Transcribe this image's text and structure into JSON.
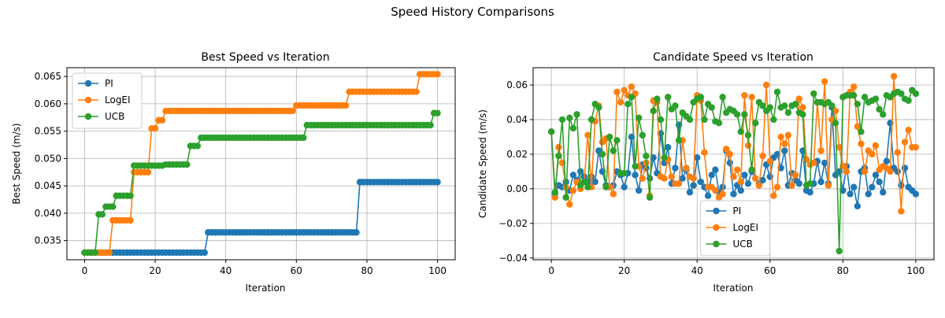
{
  "figure": {
    "suptitle": "Speed History Comparisons"
  },
  "colors": {
    "PI": "#1f77b4",
    "LogEI": "#ff7f0e",
    "UCB": "#2ca02c",
    "grid": "#b0b0b0"
  },
  "chart_data": [
    {
      "type": "line",
      "title": "Best Speed vs Iteration",
      "xlabel": "Iteration",
      "ylabel": "Best Speed (m/s)",
      "xlim": [
        -5,
        105
      ],
      "ylim": [
        0.0315,
        0.0666
      ],
      "xticks": [
        0,
        20,
        40,
        60,
        80,
        100
      ],
      "yticks": [
        0.035,
        0.04,
        0.045,
        0.05,
        0.055,
        0.06,
        0.065
      ],
      "ytick_labels": [
        "0.035",
        "0.040",
        "0.045",
        "0.050",
        "0.055",
        "0.060",
        "0.065"
      ],
      "grid": true,
      "legend": "upper-left",
      "x": {
        "start": 0,
        "end": 100,
        "step": 1
      },
      "series": [
        {
          "name": "PI",
          "color": "#1f77b4",
          "steps": [
            [
              0,
              0.0328
            ],
            [
              35,
              0.0365
            ],
            [
              78,
              0.0457
            ]
          ]
        },
        {
          "name": "LogEI",
          "color": "#ff7f0e",
          "steps": [
            [
              0,
              0.0328
            ],
            [
              8,
              0.0387
            ],
            [
              14,
              0.0475
            ],
            [
              19,
              0.0555
            ],
            [
              21,
              0.057
            ],
            [
              23,
              0.0587
            ],
            [
              60,
              0.0597
            ],
            [
              75,
              0.0622
            ],
            [
              95,
              0.0654
            ]
          ]
        },
        {
          "name": "UCB",
          "color": "#2ca02c",
          "steps": [
            [
              0,
              0.0328
            ],
            [
              4,
              0.0398
            ],
            [
              6,
              0.0412
            ],
            [
              9,
              0.0432
            ],
            [
              14,
              0.0487
            ],
            [
              23,
              0.0489
            ],
            [
              30,
              0.0523
            ],
            [
              33,
              0.0538
            ],
            [
              63,
              0.0561
            ],
            [
              99,
              0.0583
            ]
          ]
        }
      ]
    },
    {
      "type": "line",
      "title": "Candidate Speed vs Iteration",
      "xlabel": "Iteration",
      "ylabel": "Candidate Speed (m/s)",
      "xlim": [
        -5,
        105
      ],
      "ylim": [
        -0.041,
        0.07
      ],
      "xticks": [
        0,
        20,
        40,
        60,
        80,
        100
      ],
      "yticks": [
        -0.04,
        -0.02,
        0.0,
        0.02,
        0.04,
        0.06
      ],
      "ytick_labels": [
        "−0.04",
        "−0.02",
        "0.00",
        "0.02",
        "0.04",
        "0.06"
      ],
      "grid": true,
      "legend": "lower-center",
      "x": {
        "start": 0,
        "end": 100,
        "step": 1
      },
      "series": [
        {
          "name": "PI",
          "color": "#1f77b4",
          "values": [
            0.033,
            -0.003,
            0.002,
            0.001,
            0.004,
            -0.001,
            0.008,
            0.005,
            0.01,
            0.007,
            0.004,
            0.007,
            0.004,
            0.022,
            0.01,
            0.002,
            0.001,
            0.002,
            0.01,
            0.008,
            0.001,
            0.009,
            0.03,
            0.008,
            -0.001,
            0.014,
            0.012,
            0.006,
            0.018,
            0.009,
            0.032,
            0.015,
            0.024,
            0.003,
            0.012,
            0.037,
            0.006,
            0.011,
            -0.002,
            0.002,
            0.018,
            0.004,
            0.001,
            -0.004,
            0.008,
            0.011,
            -0.002,
            0.001,
            0.022,
            0.015,
            -0.003,
            0.002,
            -0.001,
            0.008,
            0.003,
            0.01,
            0.006,
            0.003,
            0.005,
            0.014,
            0.007,
            0.018,
            0.02,
            0.012,
            0.022,
            0.002,
            0.009,
            0.005,
            0.003,
            0.022,
            -0.001,
            -0.002,
            0.003,
            0.016,
            0.004,
            0.015,
            0.003,
            0.047,
            0.008,
            0.01,
            -0.001,
            0.013,
            -0.003,
            0.001,
            -0.01,
            0.01,
            0.012,
            -0.003,
            0.001,
            0.008,
            0.004,
            -0.002,
            0.016,
            0.038,
            0.012,
            0.01,
            0.002,
            0.012,
            0.001,
            -0.001,
            -0.003
          ]
        },
        {
          "name": "LogEI",
          "color": "#ff7f0e",
          "values": [
            0.033,
            -0.005,
            0.024,
            0.015,
            0.001,
            -0.009,
            -0.001,
            0.004,
            0.0,
            0.004,
            0.031,
            0.001,
            0.039,
            0.048,
            0.027,
            0.029,
            0.001,
            -0.003,
            0.056,
            0.05,
            0.057,
            0.054,
            0.059,
            0.055,
            0.013,
            0.006,
            0.015,
            -0.004,
            0.051,
            0.05,
            0.007,
            0.006,
            0.017,
            0.007,
            0.003,
            0.003,
            0.028,
            0.012,
            0.007,
            0.006,
            0.054,
            0.051,
            0.021,
            0.001,
            0.001,
            -0.001,
            -0.005,
            -0.003,
            0.023,
            0.02,
            0.007,
            0.011,
            0.004,
            0.054,
            0.025,
            0.053,
            0.006,
            0.002,
            0.019,
            0.06,
            0.016,
            -0.004,
            0.001,
            0.03,
            0.026,
            0.031,
            0.002,
            0.008,
            0.052,
            0.047,
            0.017,
            0.014,
            0.015,
            0.05,
            0.022,
            0.062,
            0.002,
            0.04,
            0.045,
            0.024,
            0.013,
            0.01,
            0.056,
            0.059,
            0.036,
            0.026,
            0.01,
            0.022,
            0.02,
            0.025,
            0.011,
            0.013,
            0.012,
            0.01,
            0.065,
            0.021,
            -0.013,
            0.027,
            0.034,
            0.024,
            0.024
          ]
        },
        {
          "name": "UCB",
          "color": "#2ca02c",
          "values": [
            0.033,
            -0.002,
            0.019,
            0.04,
            -0.005,
            0.041,
            0.035,
            0.043,
            0.002,
            0.004,
            0.001,
            0.04,
            0.049,
            0.047,
            0.02,
            0.001,
            0.03,
            0.022,
            0.028,
            0.009,
            0.009,
            0.049,
            0.053,
            0.013,
            0.041,
            0.031,
            0.019,
            -0.005,
            0.045,
            0.052,
            0.04,
            0.018,
            0.053,
            0.046,
            0.048,
            0.028,
            0.044,
            0.042,
            0.04,
            0.05,
            0.052,
            0.053,
            0.04,
            0.049,
            0.047,
            0.039,
            0.038,
            0.053,
            0.044,
            0.046,
            0.045,
            0.043,
            0.033,
            0.043,
            0.031,
            0.011,
            0.038,
            0.05,
            0.048,
            0.045,
            0.047,
            0.04,
            0.056,
            0.047,
            0.048,
            0.044,
            0.048,
            0.049,
            0.044,
            0.043,
            0.002,
            0.003,
            0.055,
            0.05,
            0.05,
            0.049,
            0.05,
            0.048,
            0.038,
            -0.036,
            0.053,
            0.054,
            0.054,
            0.054,
            0.049,
            0.033,
            0.053,
            0.05,
            0.051,
            0.052,
            0.046,
            0.043,
            0.054,
            0.053,
            0.055,
            0.056,
            0.055,
            0.052,
            0.051,
            0.057,
            0.055
          ]
        }
      ]
    }
  ]
}
